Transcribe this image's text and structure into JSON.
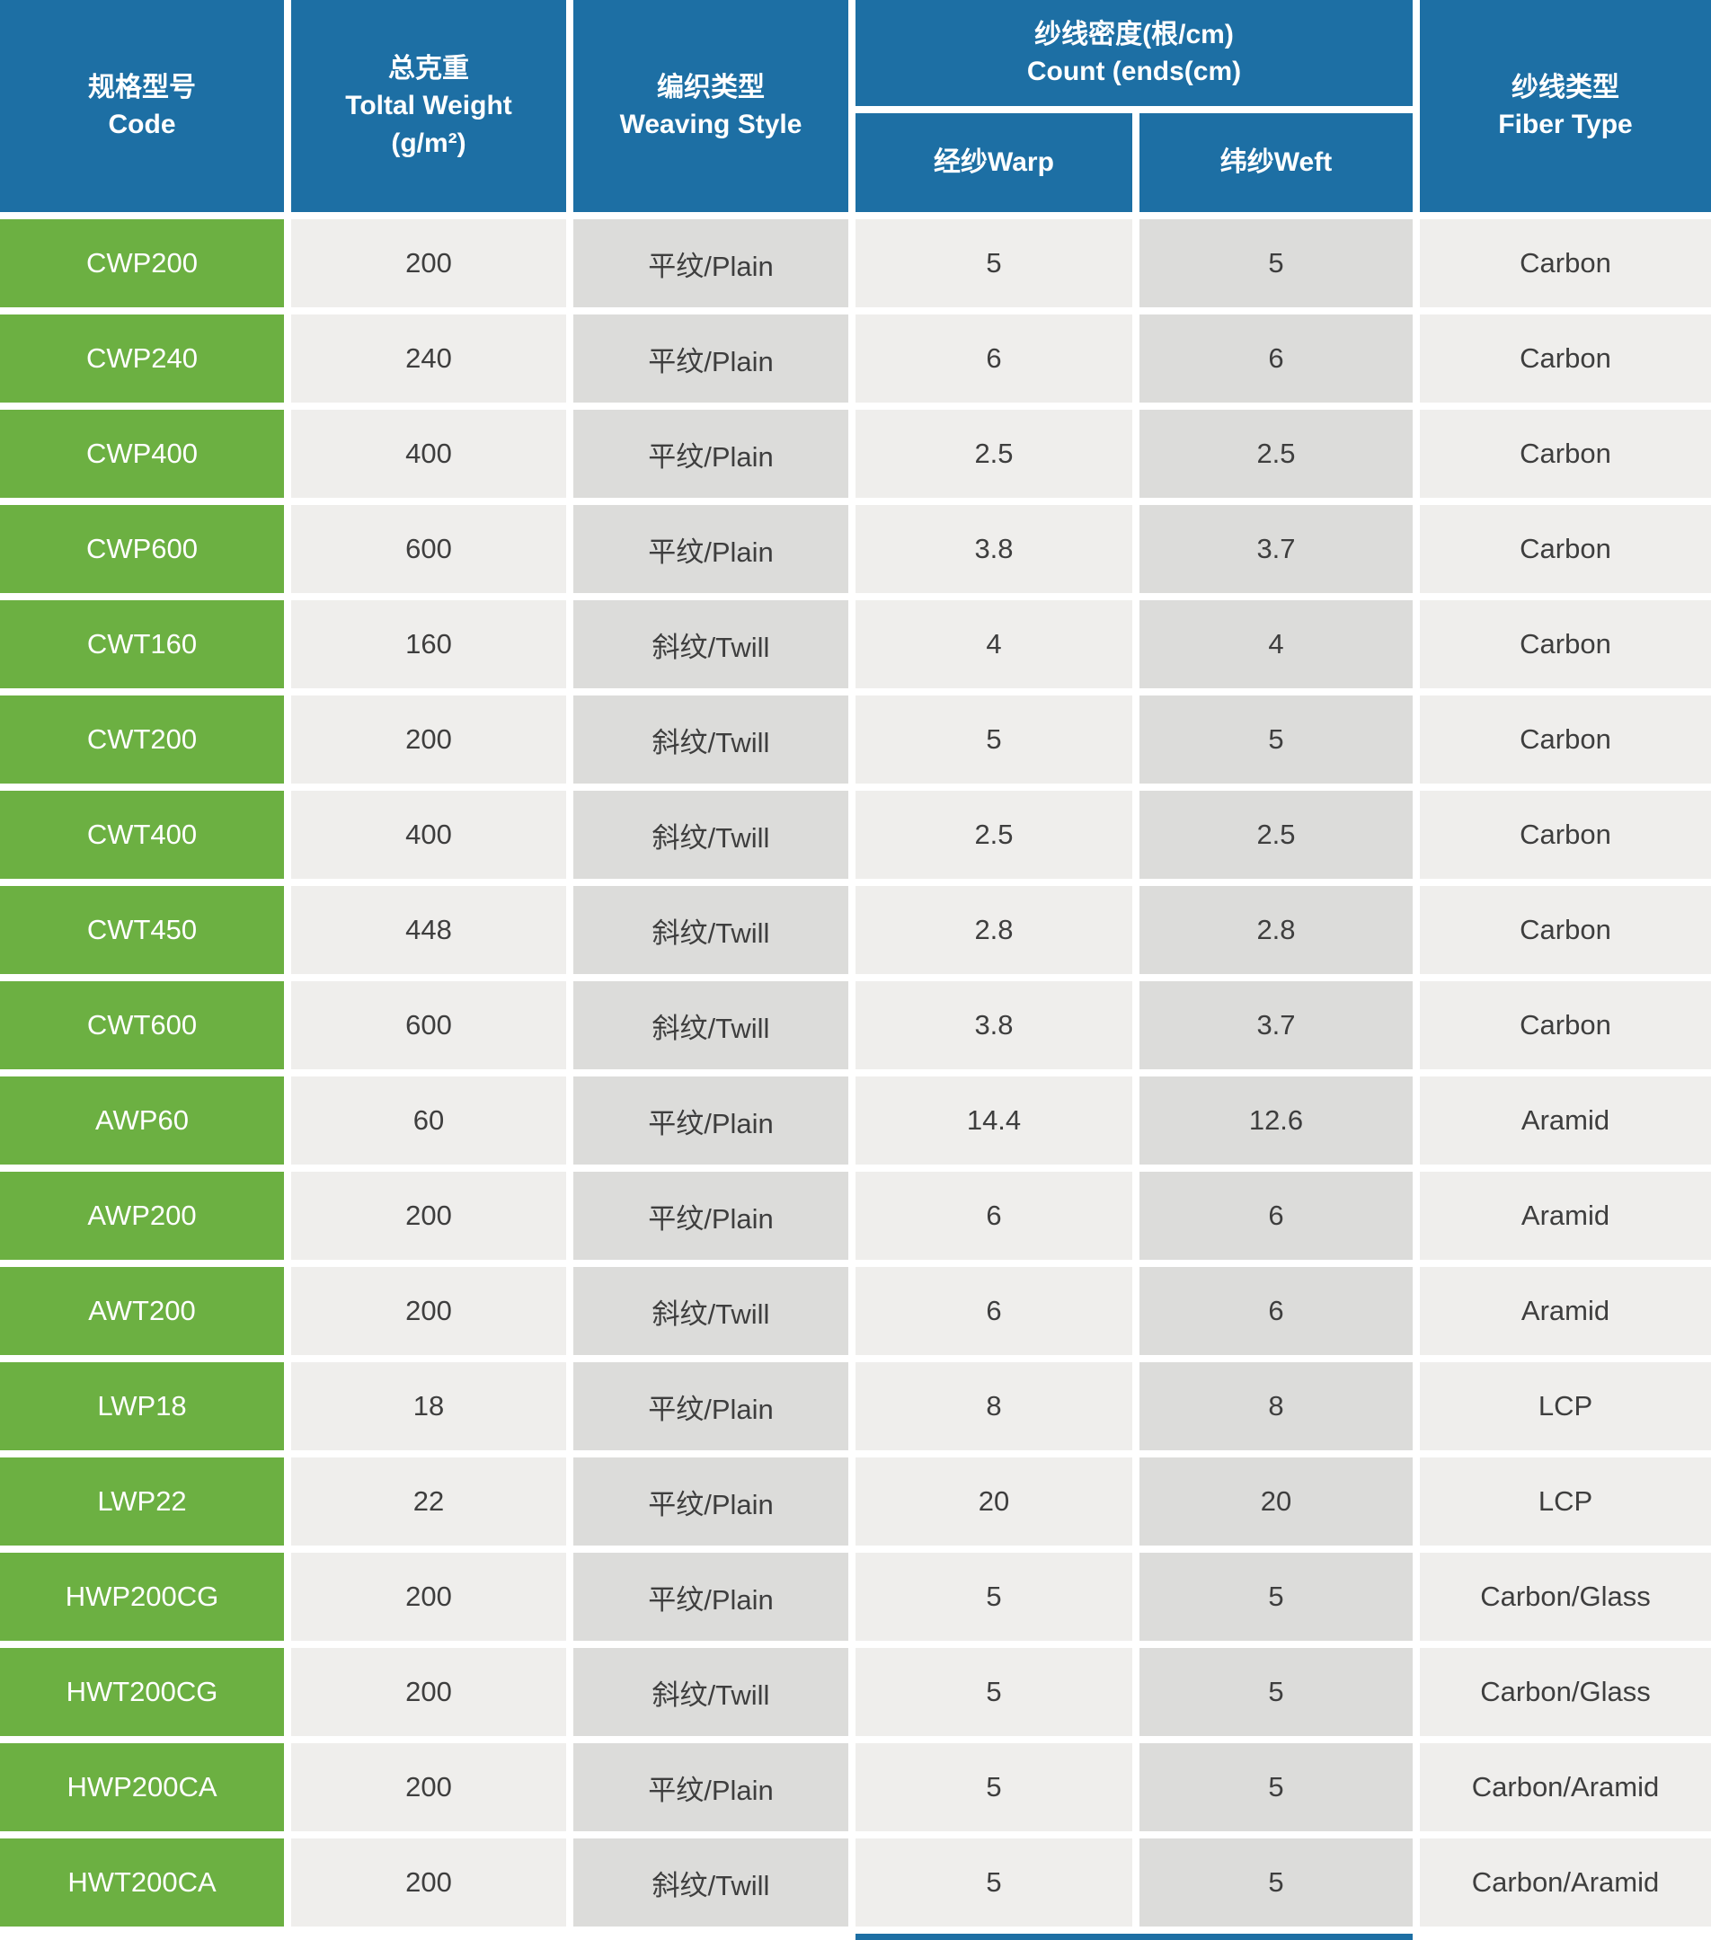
{
  "colors": {
    "header_bg": "#1d6fa4",
    "code_bg": "#6cb042",
    "row_light": "#efeeec",
    "row_dark": "#dcdcda",
    "text_color": "#3e3e3e"
  },
  "chart_data": {
    "type": "table",
    "headers": {
      "code_zh": "规格型号",
      "code_en": "Code",
      "weight_zh": "总克重",
      "weight_en": "Toltal Weight",
      "weight_unit": "(g/m²)",
      "weaving_zh": "编织类型",
      "weaving_en": "Weaving Style",
      "count_zh": "纱线密度(根/cm)",
      "count_en": "Count (ends(cm)",
      "warp": "经纱Warp",
      "weft": "纬纱Weft",
      "fiber_zh": "纱线类型",
      "fiber_en": "Fiber Type"
    },
    "rows": [
      {
        "code": "CWP200",
        "weight": "200",
        "weaving": "平纹/Plain",
        "warp": "5",
        "weft": "5",
        "fiber": "Carbon"
      },
      {
        "code": "CWP240",
        "weight": "240",
        "weaving": "平纹/Plain",
        "warp": "6",
        "weft": "6",
        "fiber": "Carbon"
      },
      {
        "code": "CWP400",
        "weight": "400",
        "weaving": "平纹/Plain",
        "warp": "2.5",
        "weft": "2.5",
        "fiber": "Carbon"
      },
      {
        "code": "CWP600",
        "weight": "600",
        "weaving": "平纹/Plain",
        "warp": "3.8",
        "weft": "3.7",
        "fiber": "Carbon"
      },
      {
        "code": "CWT160",
        "weight": "160",
        "weaving": "斜纹/Twill",
        "warp": "4",
        "weft": "4",
        "fiber": "Carbon"
      },
      {
        "code": "CWT200",
        "weight": "200",
        "weaving": "斜纹/Twill",
        "warp": "5",
        "weft": "5",
        "fiber": "Carbon"
      },
      {
        "code": "CWT400",
        "weight": "400",
        "weaving": "斜纹/Twill",
        "warp": "2.5",
        "weft": "2.5",
        "fiber": "Carbon"
      },
      {
        "code": "CWT450",
        "weight": "448",
        "weaving": "斜纹/Twill",
        "warp": "2.8",
        "weft": "2.8",
        "fiber": "Carbon"
      },
      {
        "code": "CWT600",
        "weight": "600",
        "weaving": "斜纹/Twill",
        "warp": "3.8",
        "weft": "3.7",
        "fiber": "Carbon"
      },
      {
        "code": "AWP60",
        "weight": "60",
        "weaving": "平纹/Plain",
        "warp": "14.4",
        "weft": "12.6",
        "fiber": "Aramid"
      },
      {
        "code": "AWP200",
        "weight": "200",
        "weaving": "平纹/Plain",
        "warp": "6",
        "weft": "6",
        "fiber": "Aramid"
      },
      {
        "code": "AWT200",
        "weight": "200",
        "weaving": "斜纹/Twill",
        "warp": "6",
        "weft": "6",
        "fiber": "Aramid"
      },
      {
        "code": "LWP18",
        "weight": "18",
        "weaving": "平纹/Plain",
        "warp": "8",
        "weft": "8",
        "fiber": "LCP"
      },
      {
        "code": "LWP22",
        "weight": "22",
        "weaving": "平纹/Plain",
        "warp": "20",
        "weft": "20",
        "fiber": "LCP"
      },
      {
        "code": "HWP200CG",
        "weight": "200",
        "weaving": "平纹/Plain",
        "warp": "5",
        "weft": "5",
        "fiber": "Carbon/Glass"
      },
      {
        "code": "HWT200CG",
        "weight": "200",
        "weaving": "斜纹/Twill",
        "warp": "5",
        "weft": "5",
        "fiber": "Carbon/Glass"
      },
      {
        "code": "HWP200CA",
        "weight": "200",
        "weaving": "平纹/Plain",
        "warp": "5",
        "weft": "5",
        "fiber": "Carbon/Aramid"
      },
      {
        "code": "HWT200CA",
        "weight": "200",
        "weaving": "斜纹/Twill",
        "warp": "5",
        "weft": "5",
        "fiber": "Carbon/Aramid"
      }
    ]
  }
}
